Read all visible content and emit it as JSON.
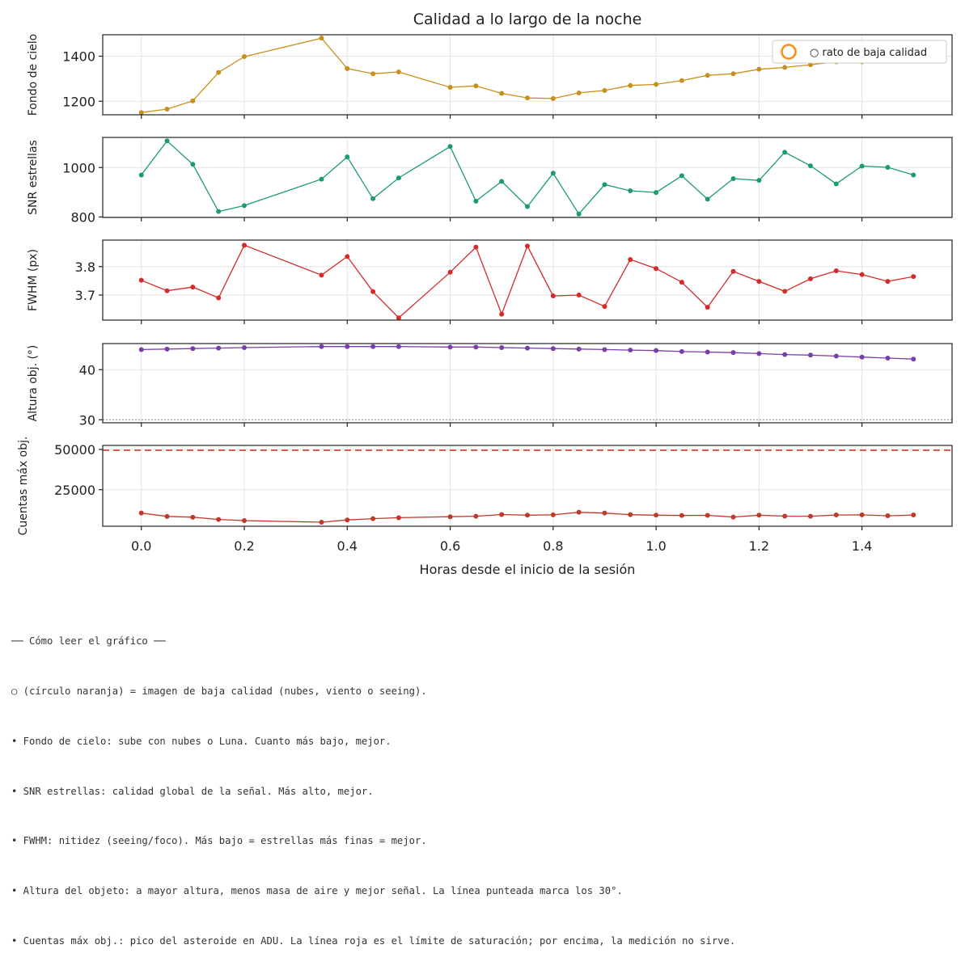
{
  "chart_data": {
    "type": "line",
    "title": "Calidad a lo largo de la noche",
    "xlabel": "Horas desde el inicio de la sesión",
    "xlim": [
      -0.075,
      1.575
    ],
    "xticks": [
      0.0,
      0.2,
      0.4,
      0.6,
      0.8,
      1.0,
      1.2,
      1.4
    ],
    "xtick_labels": [
      "0.0",
      "0.2",
      "0.4",
      "0.6",
      "0.8",
      "1.0",
      "1.2",
      "1.4"
    ],
    "grid": true,
    "legend": {
      "placement": "top-right",
      "marker_color": "#ff8c1a",
      "label": "○ rato de baja calidad"
    },
    "x": [
      0.0,
      0.05,
      0.1,
      0.15,
      0.2,
      0.35,
      0.4,
      0.45,
      0.5,
      0.6,
      0.65,
      0.7,
      0.75,
      0.8,
      0.85,
      0.9,
      0.95,
      1.0,
      1.05,
      1.1,
      1.15,
      1.2,
      1.25,
      1.3,
      1.35,
      1.4,
      1.45,
      1.5
    ],
    "panels": [
      {
        "ylabel": "Fondo de cielo",
        "color": "#c8901a",
        "ylim": [
          1140,
          1495
        ],
        "yticks": [
          1200,
          1400
        ],
        "ytick_labels": [
          "1200",
          "1400"
        ],
        "values": [
          1150,
          1165,
          1202,
          1328,
          1398,
          1480,
          1345,
          1322,
          1330,
          1262,
          1268,
          1235,
          1215,
          1212,
          1237,
          1248,
          1270,
          1275,
          1292,
          1315,
          1322,
          1342,
          1350,
          1362,
          1375,
          1375,
          1378,
          1385
        ]
      },
      {
        "ylabel": "SNR estrellas",
        "color": "#1b9b73",
        "ylim": [
          798,
          1122
        ],
        "yticks": [
          800,
          1000
        ],
        "ytick_labels": [
          "800",
          "1000"
        ],
        "values": [
          970,
          1108,
          1013,
          822,
          846,
          953,
          1043,
          874,
          958,
          1085,
          864,
          944,
          842,
          977,
          812,
          931,
          906,
          899,
          967,
          872,
          955,
          948,
          1062,
          1007,
          934,
          1006,
          1001,
          970
        ]
      },
      {
        "ylabel": "FWHM (px)",
        "color": "#d42a2a",
        "ylim": [
          3.612,
          3.893
        ],
        "yticks": [
          3.7,
          3.8
        ],
        "ytick_labels": [
          "3.7",
          "3.8"
        ],
        "values": [
          3.752,
          3.715,
          3.728,
          3.69,
          3.875,
          3.77,
          3.835,
          3.712,
          3.62,
          3.78,
          3.868,
          3.633,
          3.872,
          3.697,
          3.7,
          3.66,
          3.825,
          3.793,
          3.745,
          3.657,
          3.783,
          3.748,
          3.713,
          3.757,
          3.785,
          3.772,
          3.748,
          3.765
        ]
      },
      {
        "ylabel": "Altura obj. (°)",
        "color": "#7a3ea8",
        "ylim": [
          29.4,
          45.2
        ],
        "yticks": [
          30,
          40
        ],
        "ytick_labels": [
          "30",
          "40"
        ],
        "values": [
          44.0,
          44.1,
          44.2,
          44.3,
          44.4,
          44.6,
          44.6,
          44.6,
          44.6,
          44.5,
          44.5,
          44.4,
          44.3,
          44.2,
          44.1,
          44.0,
          43.9,
          43.8,
          43.6,
          43.5,
          43.4,
          43.2,
          43.0,
          42.9,
          42.7,
          42.5,
          42.3,
          42.1
        ],
        "hline": {
          "value": 30,
          "style": "dotted",
          "color": "#aaaaaa"
        }
      },
      {
        "ylabel": "Cuentas máx obj.",
        "color": "#c0392b",
        "ylim": [
          2300,
          52500
        ],
        "yticks": [
          25000,
          50000
        ],
        "ytick_labels": [
          "25000",
          "50000"
        ],
        "values": [
          10500,
          8400,
          7900,
          6500,
          5800,
          4800,
          6200,
          7000,
          7600,
          8200,
          8500,
          9600,
          9200,
          9400,
          11000,
          10500,
          9500,
          9200,
          9000,
          9100,
          8000,
          9200,
          8600,
          8500,
          9300,
          9400,
          8800,
          9300
        ],
        "hline": {
          "value": 49500,
          "style": "dashed",
          "color": "#d04a3c"
        }
      }
    ]
  },
  "notes": [
    "── Cómo leer el gráfico ──",
    "○ (círculo naranja) = imagen de baja calidad (nubes, viento o seeing).",
    "• Fondo de cielo: sube con nubes o Luna. Cuanto más bajo, mejor.",
    "• SNR estrellas: calidad global de la señal. Más alto, mejor.",
    "• FWHM: nitidez (seeing/foco). Más bajo = estrellas más finas = mejor.",
    "• Altura del objeto: a mayor altura, menos masa de aire y mejor señal. La línea punteada marca los 30°.",
    "• Cuentas máx obj.: pico del asteroide en ADU. La línea roja es el límite de saturación; por encima, la medición no sirve."
  ]
}
